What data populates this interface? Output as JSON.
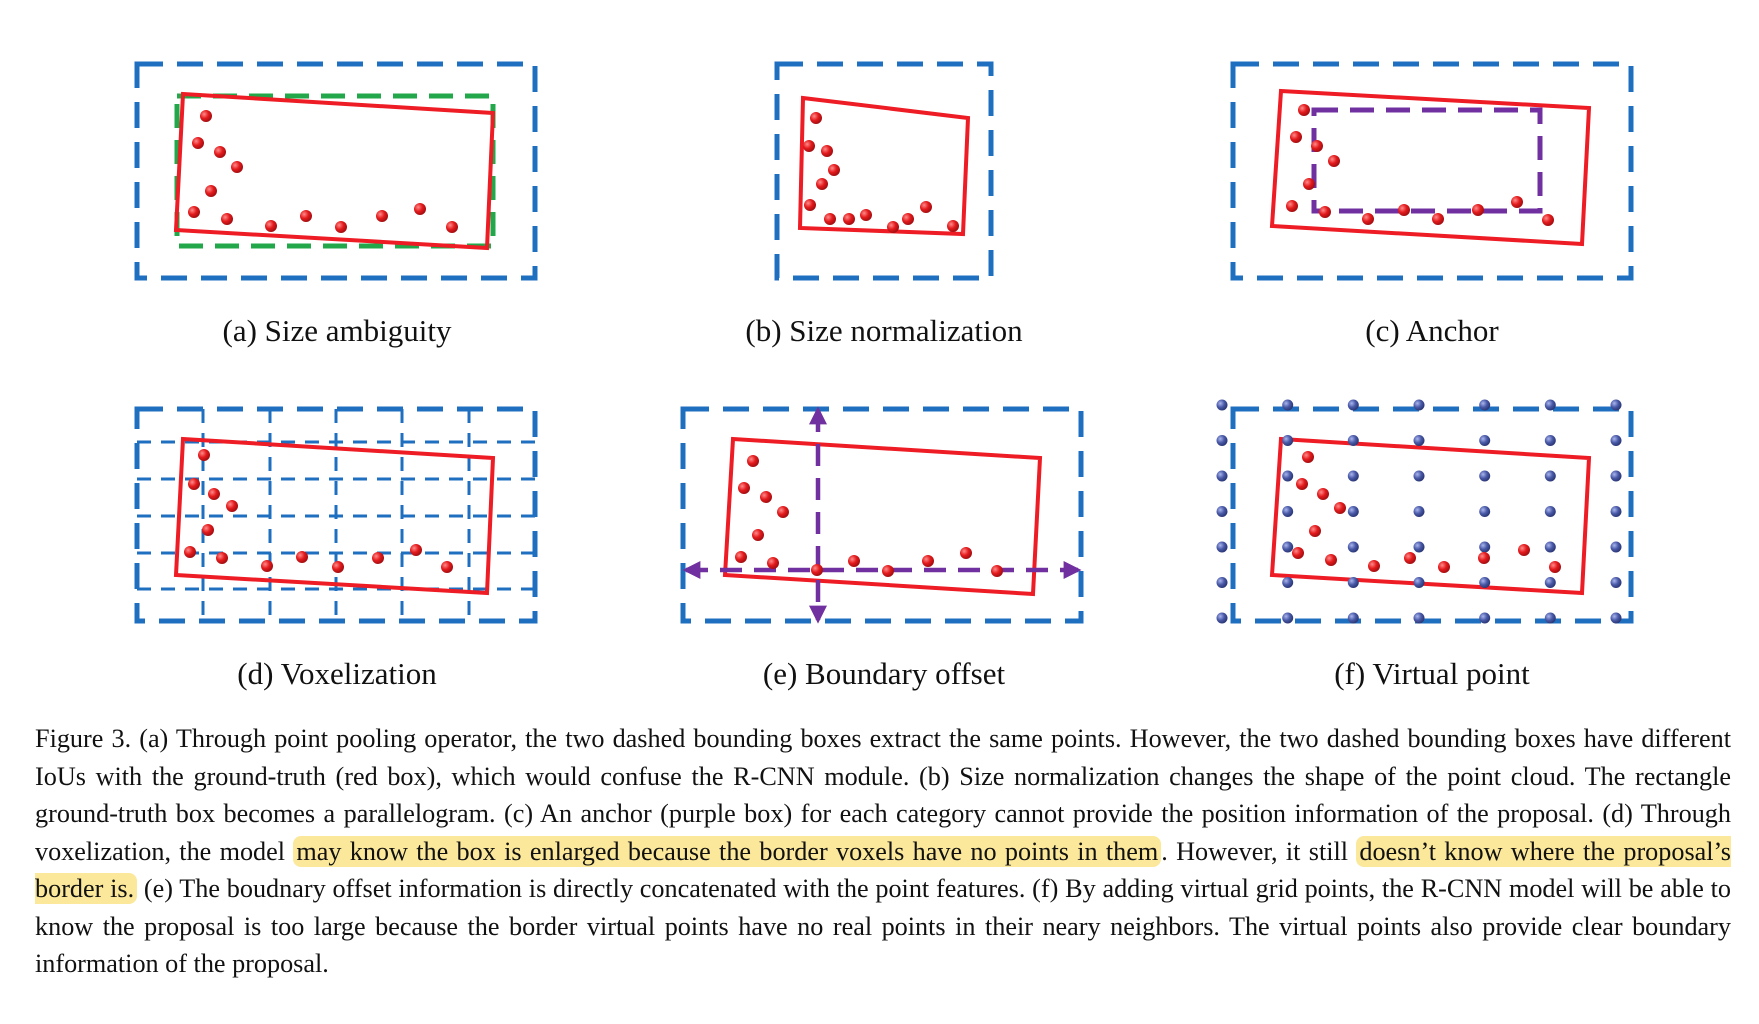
{
  "figure": {
    "colors": {
      "proposal_box": "#1f6fc0",
      "ground_truth_box": "#ee1c24",
      "alternate_box": "#22a84a",
      "anchor_box": "#7030a0",
      "real_point": "#e41a1c",
      "virtual_point": "#4a5aa8",
      "highlight": "#fbe89a"
    },
    "panels": [
      {
        "id": "a",
        "caption": "(a) Size ambiguity"
      },
      {
        "id": "b",
        "caption": "(b) Size normalization"
      },
      {
        "id": "c",
        "caption": "(c) Anchor"
      },
      {
        "id": "d",
        "caption": "(d) Voxelization"
      },
      {
        "id": "e",
        "caption": "(e) Boundary offset"
      },
      {
        "id": "f",
        "caption": "(f) Virtual point"
      }
    ]
  },
  "caption": {
    "part1": "Figure 3. (a) Through point pooling operator, the two dashed bounding boxes extract the same points. However, the two dashed bounding boxes have different IoUs with the ground-truth (red box), which would confuse the R-CNN module. (b) Size normalization changes the shape of the point cloud. The rectangle ground-truth box becomes a parallelogram. (c) An anchor (purple box) for each category cannot provide the position information of the proposal. (d) Through voxelization, the model ",
    "highlight1": "may know the box is enlarged because the border voxels have no points in them",
    "part2": ". However, it still ",
    "highlight2": "doesn’t know where the proposal’s border is.",
    "part3": " (e) The boudnary offset information is directly concatenated with the point features. (f) By adding virtual grid points, the R-CNN model will be able to know the proposal is too large because the border virtual points have no real points in their neary neighbors. The virtual points also provide clear boundary information of the proposal."
  }
}
